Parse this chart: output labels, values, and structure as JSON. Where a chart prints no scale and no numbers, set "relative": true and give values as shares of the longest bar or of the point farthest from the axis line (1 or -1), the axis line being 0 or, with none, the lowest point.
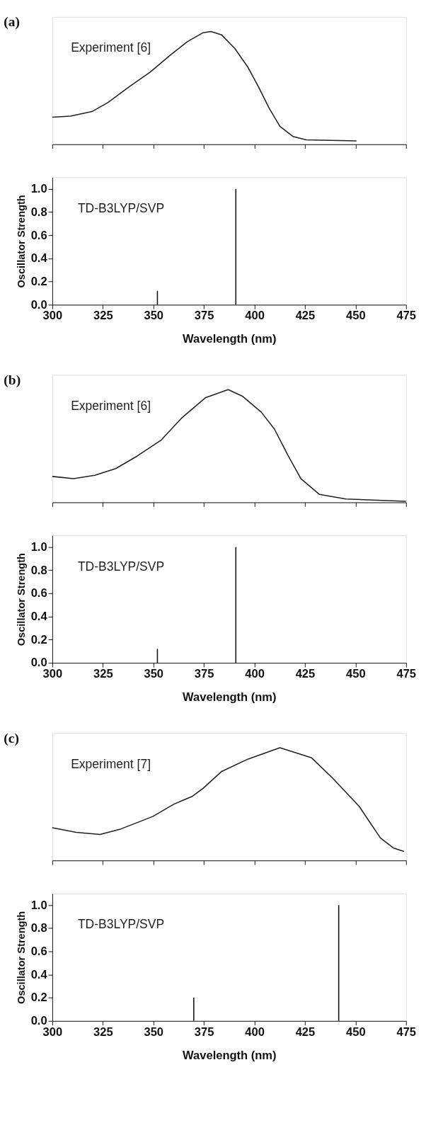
{
  "chart_data": [
    {
      "type": "line",
      "title": "(a)",
      "relative": true,
      "xlim": [
        300,
        475
      ],
      "xticks": [
        300,
        325,
        350,
        375,
        400,
        425,
        450,
        475
      ],
      "tick_labels": false,
      "annotations": [
        "Experiment [6]"
      ],
      "series": [
        {
          "color": "#222222",
          "x": [
            300,
            309,
            319.6,
            327.5,
            338,
            348.4,
            359,
            366.8,
            374.6,
            378.5,
            383.8,
            390.3,
            396.9,
            402,
            407.3,
            412.6,
            419,
            425.6,
            450.5
          ],
          "values": [
            0.24,
            0.25,
            0.29,
            0.37,
            0.51,
            0.64,
            0.8,
            0.91,
            0.99,
            1.0,
            0.97,
            0.85,
            0.68,
            0.51,
            0.32,
            0.16,
            0.07,
            0.04,
            0.03
          ]
        }
      ]
    },
    {
      "type": "bar",
      "x": [
        352,
        390.8
      ],
      "values": [
        0.12,
        1.0
      ],
      "color": "#111111",
      "xlim": [
        300,
        475
      ],
      "xticks": [
        300,
        325,
        350,
        375,
        400,
        425,
        450,
        475
      ],
      "ylim": [
        0,
        1.1
      ],
      "yticks": [
        {
          "value": 0,
          "label": "0.0"
        },
        {
          "value": 0.2,
          "label": "0.2"
        },
        {
          "value": 0.4,
          "label": "0.4"
        },
        {
          "value": 0.6,
          "label": "0.6"
        },
        {
          "value": 0.8,
          "label": "0.8"
        },
        {
          "value": 1,
          "label": "1.0"
        }
      ],
      "xlabel": "Wavelength (nm)",
      "ylabel": "Oscillator Strength",
      "annotations": [
        "TD-B3LYP/SVP"
      ]
    },
    {
      "type": "line",
      "title": "(b)",
      "relative": true,
      "xlim": [
        300,
        475
      ],
      "xticks": [
        300,
        325,
        350,
        375,
        400,
        425,
        450,
        475
      ],
      "tick_labels": false,
      "annotations": [
        "Experiment [6]"
      ],
      "series": [
        {
          "color": "#222222",
          "x": [
            300,
            310.5,
            321,
            331.4,
            341.9,
            353.7,
            364.1,
            375.9,
            387,
            394.2,
            403.4,
            409.9,
            416.5,
            423,
            432.2,
            445.3,
            475
          ],
          "values": [
            0.23,
            0.21,
            0.24,
            0.3,
            0.41,
            0.55,
            0.75,
            0.93,
            1.0,
            0.94,
            0.8,
            0.65,
            0.42,
            0.21,
            0.07,
            0.03,
            0.01
          ]
        }
      ]
    },
    {
      "type": "bar",
      "x": [
        352,
        390.8
      ],
      "values": [
        0.12,
        1.0
      ],
      "color": "#111111",
      "xlim": [
        300,
        475
      ],
      "xticks": [
        300,
        325,
        350,
        375,
        400,
        425,
        450,
        475
      ],
      "ylim": [
        0,
        1.1
      ],
      "yticks": [
        {
          "value": 0,
          "label": "0.0"
        },
        {
          "value": 0.2,
          "label": "0.2"
        },
        {
          "value": 0.4,
          "label": "0.4"
        },
        {
          "value": 0.6,
          "label": "0.6"
        },
        {
          "value": 0.8,
          "label": "0.8"
        },
        {
          "value": 1,
          "label": "1.0"
        }
      ],
      "xlabel": "Wavelength (nm)",
      "ylabel": "Oscillator Strength",
      "annotations": [
        "TD-B3LYP/SVP"
      ]
    },
    {
      "type": "line",
      "title": "(c)",
      "relative": true,
      "xlim": [
        300,
        475
      ],
      "xticks": [
        300,
        325,
        350,
        375,
        400,
        425,
        450,
        475
      ],
      "tick_labels": false,
      "annotations": [
        "Experiment [7]"
      ],
      "series": [
        {
          "color": "#222222",
          "x": [
            300,
            311.8,
            323.6,
            334,
            349.7,
            360.2,
            369.4,
            374.6,
            383.8,
            396.9,
            412.6,
            428.3,
            438.7,
            451.8,
            462.3,
            468.8,
            474
          ],
          "values": [
            0.29,
            0.25,
            0.23,
            0.28,
            0.39,
            0.5,
            0.57,
            0.64,
            0.79,
            0.9,
            1.0,
            0.91,
            0.73,
            0.48,
            0.2,
            0.11,
            0.08
          ]
        }
      ]
    },
    {
      "type": "bar",
      "x": [
        370,
        441.7
      ],
      "values": [
        0.2,
        1.0
      ],
      "color": "#111111",
      "xlim": [
        300,
        475
      ],
      "xticks": [
        300,
        325,
        350,
        375,
        400,
        425,
        450,
        475
      ],
      "ylim": [
        0,
        1.1
      ],
      "yticks": [
        {
          "value": 0,
          "label": "0.0"
        },
        {
          "value": 0.2,
          "label": "0.2"
        },
        {
          "value": 0.4,
          "label": "0.4"
        },
        {
          "value": 0.6,
          "label": "0.6"
        },
        {
          "value": 0.8,
          "label": "0.8"
        },
        {
          "value": 1,
          "label": "1.0"
        }
      ],
      "xlabel": "Wavelength (nm)",
      "ylabel": "Oscillator Strength",
      "annotations": [
        "TD-B3LYP/SVP"
      ]
    }
  ]
}
